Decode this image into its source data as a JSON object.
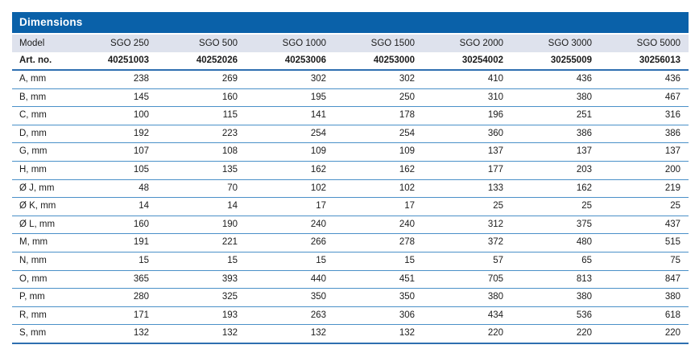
{
  "table": {
    "title": "Dimensions",
    "columns": [
      "Model",
      "SGO 250",
      "SGO 500",
      "SGO 1000",
      "SGO 1500",
      "SGO 2000",
      "SGO 3000",
      "SGO 5000"
    ],
    "art_row": {
      "label": "Art. no.",
      "values": [
        "40251003",
        "40252026",
        "40253006",
        "40253000",
        "30254002",
        "30255009",
        "30256013"
      ]
    },
    "rows": [
      {
        "label": "A, mm",
        "values": [
          238,
          269,
          302,
          302,
          410,
          436,
          436
        ]
      },
      {
        "label": "B, mm",
        "values": [
          145,
          160,
          195,
          250,
          310,
          380,
          467
        ]
      },
      {
        "label": "C, mm",
        "values": [
          100,
          115,
          141,
          178,
          196,
          251,
          316
        ]
      },
      {
        "label": "D, mm",
        "values": [
          192,
          223,
          254,
          254,
          360,
          386,
          386
        ]
      },
      {
        "label": "G, mm",
        "values": [
          107,
          108,
          109,
          109,
          137,
          137,
          137
        ]
      },
      {
        "label": "H, mm",
        "values": [
          105,
          135,
          162,
          162,
          177,
          203,
          200
        ]
      },
      {
        "label": "Ø J, mm",
        "values": [
          48,
          70,
          102,
          102,
          133,
          162,
          219
        ]
      },
      {
        "label": "Ø K, mm",
        "values": [
          14,
          14,
          17,
          17,
          25,
          25,
          25
        ]
      },
      {
        "label": "Ø L, mm",
        "values": [
          160,
          190,
          240,
          240,
          312,
          375,
          437
        ]
      },
      {
        "label": "M, mm",
        "values": [
          191,
          221,
          266,
          278,
          372,
          480,
          515
        ]
      },
      {
        "label": "N, mm",
        "values": [
          15,
          15,
          15,
          15,
          57,
          65,
          75
        ]
      },
      {
        "label": "O, mm",
        "values": [
          365,
          393,
          440,
          451,
          705,
          813,
          847
        ]
      },
      {
        "label": "P, mm",
        "values": [
          280,
          325,
          350,
          350,
          380,
          380,
          380
        ]
      },
      {
        "label": "R, mm",
        "values": [
          171,
          193,
          263,
          306,
          434,
          536,
          618
        ]
      },
      {
        "label": "S, mm",
        "values": [
          132,
          132,
          132,
          132,
          220,
          220,
          220
        ]
      }
    ],
    "colors": {
      "header_bg": "#0a61a9",
      "model_row_bg": "#dee2ed",
      "divider": "#4a90c8",
      "strong_divider": "#2e6fb0",
      "text": "#1b1b1b"
    }
  }
}
